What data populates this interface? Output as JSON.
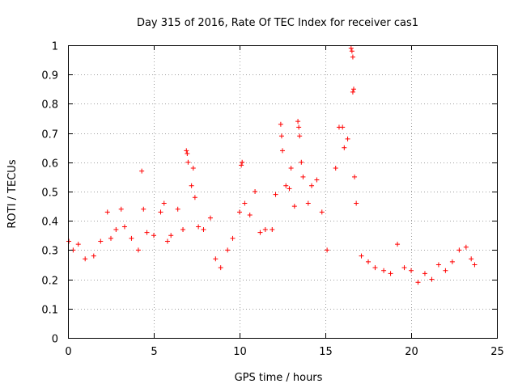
{
  "chart_data": {
    "type": "scatter",
    "title": "Day 315 of 2016, Rate Of TEC Index for receiver cas1",
    "xlabel": "GPS time / hours",
    "ylabel": "ROTI / TECUs",
    "xlim": [
      0,
      25
    ],
    "ylim": [
      0,
      1
    ],
    "xticks": [
      0,
      5,
      10,
      15,
      20,
      25
    ],
    "xtick_labels": [
      "0",
      "5",
      "10",
      "15",
      "20",
      "25"
    ],
    "yticks": [
      0,
      0.1,
      0.2,
      0.3,
      0.4,
      0.5,
      0.6,
      0.7,
      0.8,
      0.9,
      1
    ],
    "ytick_labels": [
      "0",
      "0.1",
      "0.2",
      "0.3",
      "0.4",
      "0.5",
      "0.6",
      "0.7",
      "0.8",
      "0.9",
      "1"
    ],
    "grid": true,
    "marker": "+",
    "color": "#ff0000",
    "series": [
      {
        "name": "ROTI",
        "points": [
          [
            0.05,
            0.33
          ],
          [
            0.3,
            0.3
          ],
          [
            0.6,
            0.32
          ],
          [
            1.0,
            0.27
          ],
          [
            1.5,
            0.28
          ],
          [
            1.9,
            0.33
          ],
          [
            2.3,
            0.43
          ],
          [
            2.5,
            0.34
          ],
          [
            2.8,
            0.37
          ],
          [
            3.1,
            0.44
          ],
          [
            3.3,
            0.38
          ],
          [
            3.7,
            0.34
          ],
          [
            4.1,
            0.3
          ],
          [
            4.3,
            0.57
          ],
          [
            4.4,
            0.44
          ],
          [
            4.6,
            0.36
          ],
          [
            5.0,
            0.35
          ],
          [
            5.4,
            0.43
          ],
          [
            5.6,
            0.46
          ],
          [
            5.8,
            0.33
          ],
          [
            6.0,
            0.35
          ],
          [
            6.4,
            0.44
          ],
          [
            6.7,
            0.37
          ],
          [
            6.9,
            0.64
          ],
          [
            6.95,
            0.63
          ],
          [
            7.0,
            0.6
          ],
          [
            7.2,
            0.52
          ],
          [
            7.3,
            0.58
          ],
          [
            7.4,
            0.48
          ],
          [
            7.6,
            0.38
          ],
          [
            7.9,
            0.37
          ],
          [
            8.3,
            0.41
          ],
          [
            8.6,
            0.27
          ],
          [
            8.9,
            0.24
          ],
          [
            9.3,
            0.3
          ],
          [
            9.6,
            0.34
          ],
          [
            10.0,
            0.43
          ],
          [
            10.1,
            0.59
          ],
          [
            10.15,
            0.6
          ],
          [
            10.3,
            0.46
          ],
          [
            10.6,
            0.42
          ],
          [
            10.9,
            0.5
          ],
          [
            11.2,
            0.36
          ],
          [
            11.5,
            0.37
          ],
          [
            11.9,
            0.37
          ],
          [
            12.1,
            0.49
          ],
          [
            12.4,
            0.73
          ],
          [
            12.45,
            0.69
          ],
          [
            12.5,
            0.64
          ],
          [
            12.7,
            0.52
          ],
          [
            12.9,
            0.51
          ],
          [
            13.0,
            0.58
          ],
          [
            13.2,
            0.45
          ],
          [
            13.4,
            0.74
          ],
          [
            13.45,
            0.72
          ],
          [
            13.5,
            0.69
          ],
          [
            13.6,
            0.6
          ],
          [
            13.7,
            0.55
          ],
          [
            14.0,
            0.46
          ],
          [
            14.2,
            0.52
          ],
          [
            14.5,
            0.54
          ],
          [
            14.8,
            0.43
          ],
          [
            15.1,
            0.3
          ],
          [
            15.6,
            0.58
          ],
          [
            15.8,
            0.72
          ],
          [
            16.0,
            0.72
          ],
          [
            16.1,
            0.65
          ],
          [
            16.3,
            0.68
          ],
          [
            16.5,
            0.99
          ],
          [
            16.55,
            0.98
          ],
          [
            16.6,
            0.96
          ],
          [
            16.65,
            0.85
          ],
          [
            16.6,
            0.84
          ],
          [
            16.7,
            0.55
          ],
          [
            16.8,
            0.46
          ],
          [
            17.1,
            0.28
          ],
          [
            17.5,
            0.26
          ],
          [
            17.9,
            0.24
          ],
          [
            18.4,
            0.23
          ],
          [
            18.8,
            0.22
          ],
          [
            19.2,
            0.32
          ],
          [
            19.6,
            0.24
          ],
          [
            20.0,
            0.23
          ],
          [
            20.4,
            0.19
          ],
          [
            20.8,
            0.22
          ],
          [
            21.2,
            0.2
          ],
          [
            21.6,
            0.25
          ],
          [
            22.0,
            0.23
          ],
          [
            22.4,
            0.26
          ],
          [
            22.8,
            0.3
          ],
          [
            23.2,
            0.31
          ],
          [
            23.5,
            0.27
          ],
          [
            23.7,
            0.25
          ]
        ]
      }
    ]
  }
}
